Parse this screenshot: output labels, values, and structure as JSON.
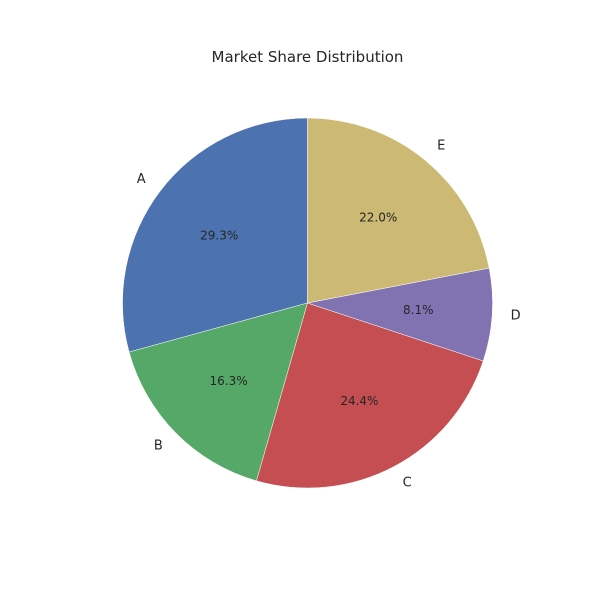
{
  "chart_data": {
    "type": "pie",
    "title": "Market Share Distribution",
    "categories": [
      "A",
      "B",
      "C",
      "D",
      "E"
    ],
    "values": [
      29.3,
      16.3,
      24.4,
      8.1,
      22.0
    ],
    "value_labels": [
      "29.3%",
      "16.3%",
      "24.4%",
      "8.1%",
      "22.0%"
    ],
    "colors": [
      "#4c72b0",
      "#55a868",
      "#c44e52",
      "#8172b2",
      "#ccb974"
    ],
    "start_angle_deg": 90,
    "direction": "counterclockwise"
  }
}
